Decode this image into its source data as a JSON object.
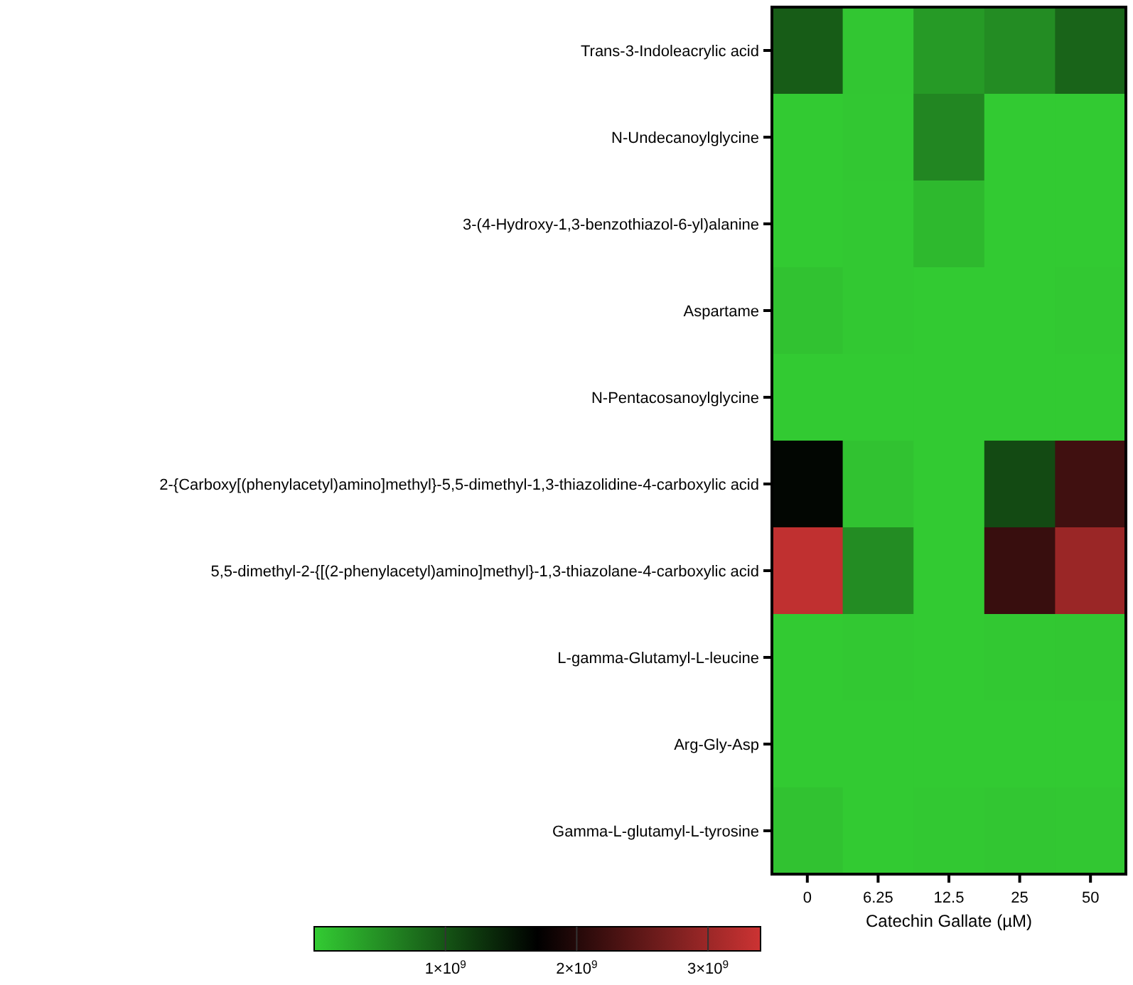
{
  "chart_data": {
    "type": "heatmap",
    "xlabel": "Catechin Gallate (µM)",
    "categories": [
      "0",
      "6.25",
      "12.5",
      "25",
      "50"
    ],
    "y_categories": [
      "Trans-3-Indoleacrylic acid",
      "N-Undecanoylglycine",
      "3-(4-Hydroxy-1,3-benzothiazol-6-yl)alanine",
      "Aspartame",
      "N-Pentacosanoylglycine",
      "2-{Carboxy[(phenylacetyl)amino]methyl}-5,5-dimethyl-1,3-thiazolidine-4-carboxylic acid",
      "5,5-dimethyl-2-{[(2-phenylacetyl)amino]methyl}-1,3-thiazolane-4-carboxylic acid",
      "L-gamma-Glutamyl-L-leucine",
      "Arg-Gly-Asp",
      "Gamma-L-glutamyl-L-tyrosine"
    ],
    "cells": [
      [
        930000000,
        50000000,
        420000000,
        530000000,
        870000000
      ],
      [
        20000000,
        40000000,
        580000000,
        20000000,
        20000000
      ],
      [
        20000000,
        30000000,
        160000000,
        20000000,
        20000000
      ],
      [
        80000000,
        30000000,
        20000000,
        20000000,
        30000000
      ],
      [
        20000000,
        20000000,
        20000000,
        20000000,
        20000000
      ],
      [
        1650000000,
        80000000,
        20000000,
        1080000000,
        2230000000
      ],
      [
        3300000000,
        530000000,
        20000000,
        2170000000,
        2980000000
      ],
      [
        20000000,
        30000000,
        20000000,
        30000000,
        40000000
      ],
      [
        20000000,
        20000000,
        20000000,
        20000000,
        20000000
      ],
      [
        80000000,
        20000000,
        30000000,
        50000000,
        40000000
      ]
    ],
    "clim": [
      0,
      3400000000
    ],
    "cticks": [
      {
        "value": 1000000000,
        "label": "1×10$^{9}$"
      },
      {
        "value": 2000000000,
        "label": "2×10$^{9}$"
      },
      {
        "value": 3000000000,
        "label": "3×10$^{9}$"
      }
    ]
  }
}
